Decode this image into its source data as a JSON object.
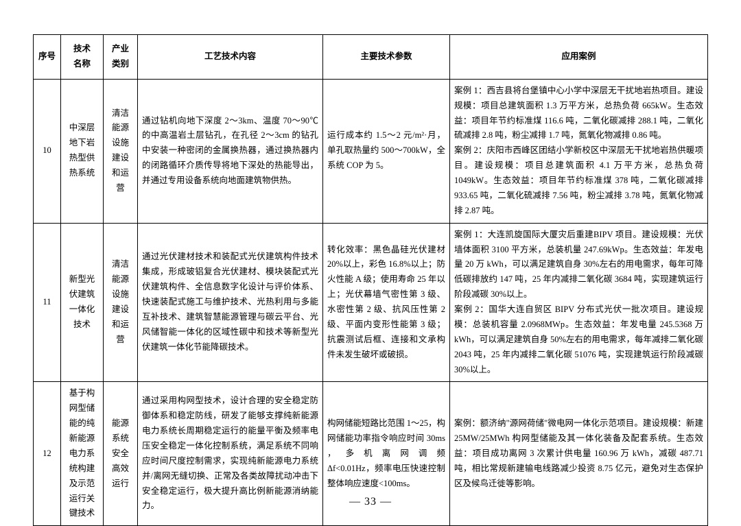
{
  "header": {
    "seq": "序号",
    "name": "技术\n名称",
    "category": "产业\n类别",
    "tech": "工艺技术内容",
    "param": "主要技术参数",
    "case": "应用案例"
  },
  "rows": [
    {
      "seq": "10",
      "name": "中深层地下岩热型供热系统",
      "category": "清洁能源设施建设和运营",
      "tech": "通过钻机向地下深度 2～3km、温度 70～90℃的中高温岩土层钻孔，在孔径 2～3cm 的钻孔中安装一种密闭的金属换热器，通过换热器内的闭路循环介质传导将地下深处的热能导出，并通过专用设备系统向地面建筑物供热。",
      "param": "运行成本约 1.5～2 元/m²·月，单孔取热量约 500～700kW，全系统 COP 为 5。",
      "case": "案例 1：西吉县将台堡镇中心小学中深层无干扰地岩热项目。建设规模：项目总建筑面积 1.3 万平方米，总热负荷 665kW。生态效益：项目年节约标准煤 116.6 吨，二氧化碳减排 288.1 吨，二氧化硫减排 2.8 吨，粉尘减排 1.7 吨，氮氧化物减排 0.86 吨。\n案例 2：庆阳市西峰区团结小学新校区中深层无干扰地岩热供暖项目。建设规模：项目总建筑面积 4.1 万平方米，总热负荷 1049kW。生态效益：项目年节约标准煤 378 吨，二氧化碳减排 933.65 吨，二氧化硫减排 7.56 吨，粉尘减排 3.78 吨，氮氧化物减排 2.87 吨。"
    },
    {
      "seq": "11",
      "name": "新型光伏建筑一体化技术",
      "category": "清洁能源设施建设和运营",
      "tech": "通过光伏建材技术和装配式光伏建筑构件技术集成，形成玻铝复合光伏建材、模块装配式光伏建筑构件、全信息数字化设计与评价体系、快速装配式施工与维护技术、光热利用与多能互补技术、建筑智慧能源管理与碳云平台、光风储智能一体化的区域性碳中和技术等新型光伏建筑一体化节能降碳技术。",
      "param": "转化效率：黑色晶硅光伏建材 20%以上，彩色 16.8%以上；防火性能 A 级；使用寿命 25 年以上；光伏幕墙气密性第 3 级、水密性第 2 级、抗风压性第 2 级、平面内变形性能第 3 级；抗震测试后框、连接和文承构件未发生破坏或破损。",
      "case": "案例 1：大连凯旋国际大厦灾后重建BIPV 项目。建设规模：光伏墙体面积 3100 平方米，总装机量 247.69kWp。生态效益：年发电量 20 万 kWh，可以满足建筑自身 30%左右的用电需求，每年可降低碳排放约 147 吨，25 年内减排二氧化碳 3684 吨，实现建筑运行阶段减碳 30%以上。\n案例 2：国华大连自贸区 BIPV 分布式光伏一批次项目。建设规模：总装机容量 2.0968MWp。生态效益：年发电量 245.5368 万 kWh，可以满足建筑自身 50%左右的用电需求，每年减排二氧化碳 2043 吨，25 年内减排二氧化碳 51076 吨，实现建筑运行阶段减碳 30%以上。"
    },
    {
      "seq": "12",
      "name": "基于构网型储能的纯新能源电力系统构建及示范运行关键技术",
      "category": "能源系统安全高效运行",
      "tech": "通过采用构网型技术，设计合理的安全稳定防御体系和稳定防线，研发了能够支撑纯新能源电力系统长周期稳定运行的能量平衡及频率电压安全稳定一体化控制系统，满足系统不同响应时间尺度控制需求，实现纯新能源电力系统并/离网无缝切换、正常及各类故障扰动冲击下安全稳定运行，极大提升高比例新能源消纳能力。",
      "param": "构网储能短路比范围 1～25，构网储能功率指令响应时间 30ms ， 多 机 离 网 调 频 Δf<0.01Hz，频率电压快速控制整体响应速度<100ms。",
      "case": "案例：额济纳\"源网荷储\"微电网一体化示范项目。建设规模：新建 25MW/25MWh 构网型储能及其一体化装备及配套系统。生态效益：项目成功离网 3 次累计供电量 160.96 万 kWh，减碳 487.71 吨，相比常规新建输电线路减少投资 8.75 亿元，避免对生态保护区及候鸟迁徙等影响。"
    }
  ],
  "page": "— 33 —"
}
